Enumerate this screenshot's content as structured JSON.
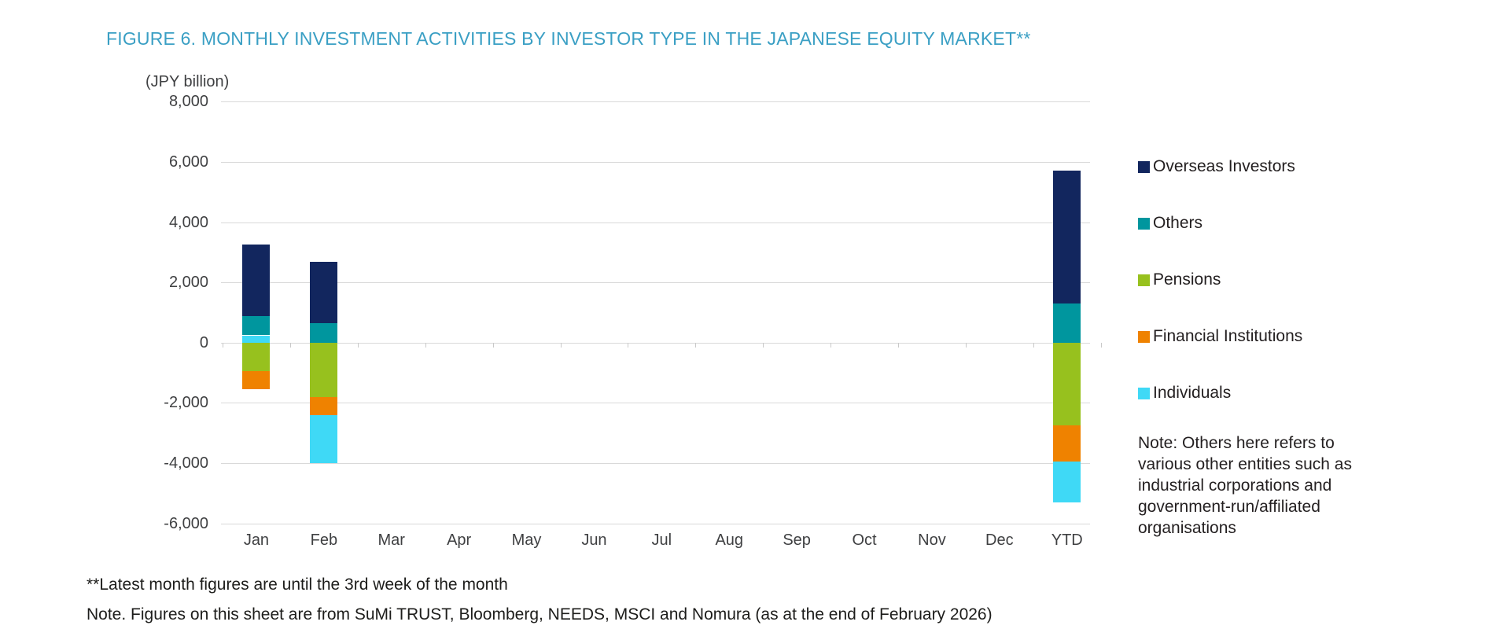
{
  "figure": {
    "title": "FIGURE 6. MONTHLY INVESTMENT ACTIVITIES BY INVESTOR TYPE IN THE JAPANESE EQUITY MARKET**",
    "title_color": "#3A9FC4"
  },
  "chart_data": {
    "type": "bar",
    "stacked": true,
    "title": "FIGURE 6. MONTHLY INVESTMENT ACTIVITIES BY INVESTOR TYPE IN THE JAPANESE EQUITY MARKET**",
    "unit_label": "(JPY billion)",
    "categories": [
      "Jan",
      "Feb",
      "Mar",
      "Apr",
      "May",
      "Jun",
      "Jul",
      "Aug",
      "Sep",
      "Oct",
      "Nov",
      "Dec",
      "YTD"
    ],
    "y_axis": {
      "min": -6000,
      "max": 8000,
      "step": 2000,
      "tick_labels": [
        "8,000",
        "6,000",
        "4,000",
        "2,000",
        "0",
        "-2,000",
        "-4,000",
        "-6,000"
      ]
    },
    "grid": "horizontal-only",
    "legend_position": "right",
    "series": [
      {
        "name": "Overseas Investors",
        "color": "#12265E",
        "values": {
          "Jan": 2370,
          "Feb": 2040,
          "YTD": 4410
        }
      },
      {
        "name": "Others",
        "color": "#00969E",
        "values": {
          "Jan": 640,
          "Feb": 650,
          "YTD": 1290
        }
      },
      {
        "name": "Pensions",
        "color": "#97C11E",
        "values": {
          "Jan": -960,
          "Feb": -1800,
          "YTD": -2760
        }
      },
      {
        "name": "Financial Institutions",
        "color": "#EF8200",
        "values": {
          "Jan": -580,
          "Feb": -610,
          "YTD": -1190
        }
      },
      {
        "name": "Individuals",
        "color": "#3FD9F6",
        "values": {
          "Jan": 240,
          "Feb": -1590,
          "YTD": -1350
        }
      }
    ],
    "bars": [
      {
        "category": "Jan",
        "segments": [
          [
            "Overseas Investors",
            2370
          ],
          [
            "Others",
            640
          ],
          [
            "Individuals",
            240
          ],
          [
            "Pensions",
            -960
          ],
          [
            "Financial Institutions",
            -580
          ]
        ]
      },
      {
        "category": "Feb",
        "segments": [
          [
            "Overseas Investors",
            2040
          ],
          [
            "Others",
            650
          ],
          [
            "Pensions",
            -1800
          ],
          [
            "Financial Institutions",
            -610
          ],
          [
            "Individuals",
            -1590
          ]
        ]
      },
      {
        "category": "YTD",
        "segments": [
          [
            "Overseas Investors",
            4410
          ],
          [
            "Others",
            1290
          ],
          [
            "Pensions",
            -2760
          ],
          [
            "Financial Institutions",
            -1190
          ],
          [
            "Individuals",
            -1350
          ]
        ]
      }
    ]
  },
  "legend": {
    "items": [
      {
        "label": "Overseas Investors",
        "color": "#12265E"
      },
      {
        "label": "Others",
        "color": "#00969E"
      },
      {
        "label": "Pensions",
        "color": "#97C11E"
      },
      {
        "label": "Financial Institutions",
        "color": "#EF8200"
      },
      {
        "label": "Individuals",
        "color": "#3FD9F6"
      }
    ]
  },
  "note": {
    "lines": [
      "Note: Others here refers to",
      "various other entities such as",
      "industrial corporations and",
      "government-run/affiliated",
      "organisations"
    ]
  },
  "footnotes": {
    "line1": "**Latest month figures are until the 3rd week of the month",
    "line2": "Note. Figures on this sheet are from SuMi TRUST, Bloomberg, NEEDS, MSCI and Nomura (as at the end of February 2026)"
  }
}
